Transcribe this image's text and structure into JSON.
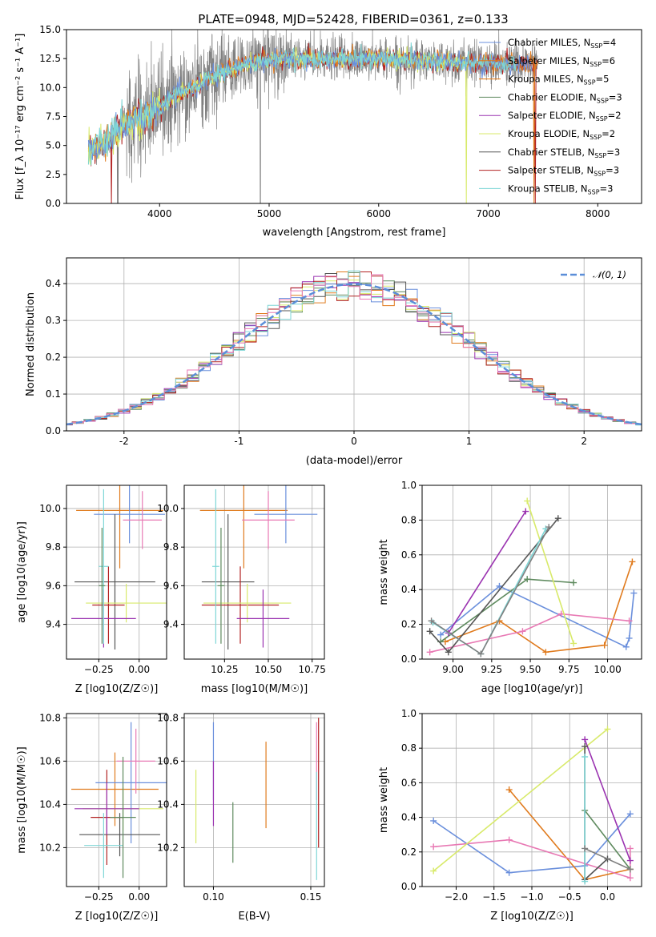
{
  "title": "PLATE=0948, MJD=52428, FIBERID=0361, z=0.133",
  "colors": {
    "Chabrier MILES": "#6a8fdc",
    "Salpeter MILES": "#e07b1e",
    "Kroupa MILES": "#e8780f",
    "Chabrier ELODIE": "#5e8a5e",
    "Salpeter ELODIE": "#9a32b0",
    "Kroupa ELODIE": "#d8ea6a",
    "Chabrier STELIB": "#555555",
    "Salpeter STELIB": "#b22222",
    "Kroupa STELIB": "#7ed6d6",
    "pink": "#e879b4",
    "data": "#808080",
    "normal": "#5b8ed8"
  },
  "chart_data": [
    {
      "id": "spectrum",
      "type": "line",
      "xlabel": "wavelength [Angstrom, rest frame]",
      "ylabel": "Flux [f_λ 10⁻¹⁷ erg cm⁻² s⁻¹ A⁻¹]",
      "xlim": [
        3150,
        8400
      ],
      "ylim": [
        0,
        15
      ],
      "xticks": [
        4000,
        5000,
        6000,
        7000,
        8000
      ],
      "yticks": [
        0.0,
        2.5,
        5.0,
        7.5,
        10.0,
        12.5,
        15.0
      ],
      "continuum": {
        "x": [
          3350,
          3500,
          3700,
          3900,
          4100,
          4300,
          4500,
          4800,
          5100,
          5500,
          6000,
          6500,
          7000,
          7400,
          7500,
          8000,
          8200
        ],
        "y": [
          4.6,
          5.2,
          7.0,
          7.5,
          9.0,
          10.0,
          11.0,
          12.0,
          12.5,
          12.5,
          12.5,
          12.3,
          12.1,
          12.0,
          12.0,
          12.1,
          12.2
        ]
      },
      "legend": [
        {
          "label": "Chabrier MILES, N",
          "sub": "SSP",
          "eq": "=4",
          "color": "#6a8fdc"
        },
        {
          "label": "Salpeter MILES, N",
          "sub": "SSP",
          "eq": "=6",
          "color": "#e07b1e"
        },
        {
          "label": "Kroupa MILES, N",
          "sub": "SSP",
          "eq": "=5",
          "color": "#e8780f"
        },
        {
          "label": "Chabrier ELODIE, N",
          "sub": "SSP",
          "eq": "=3",
          "color": "#5e8a5e"
        },
        {
          "label": "Salpeter ELODIE, N",
          "sub": "SSP",
          "eq": "=2",
          "color": "#9a32b0"
        },
        {
          "label": "Kroupa ELODIE, N",
          "sub": "SSP",
          "eq": "=2",
          "color": "#d8ea6a"
        },
        {
          "label": "Chabrier STELIB, N",
          "sub": "SSP",
          "eq": "=3",
          "color": "#555555"
        },
        {
          "label": "Salpeter STELIB, N",
          "sub": "SSP",
          "eq": "=3",
          "color": "#b22222"
        },
        {
          "label": "Kroupa STELIB, N",
          "sub": "SSP",
          "eq": "=3",
          "color": "#7ed6d6"
        }
      ]
    },
    {
      "id": "residuals",
      "type": "line",
      "xlabel": "(data-model)/error",
      "ylabel": "Normed distribution",
      "xlim": [
        -2.5,
        2.5
      ],
      "ylim": [
        0,
        0.47
      ],
      "xticks": [
        -2,
        -1,
        0,
        1,
        2
      ],
      "yticks": [
        0.0,
        0.1,
        0.2,
        0.3,
        0.4
      ],
      "legend": "N(0,1)",
      "grid": true
    },
    {
      "id": "age-vs-Z",
      "type": "scatter",
      "xlabel": "Z [log10(Z/Z☉)]",
      "ylabel": "age [log10(age/yr)]",
      "xlim": [
        -0.45,
        0.17
      ],
      "ylim": [
        9.22,
        10.12
      ],
      "xticks": [
        -0.25,
        0.0
      ],
      "xticklabels": [
        "−0.25",
        "0.00"
      ],
      "yticks": [
        9.4,
        9.6,
        9.8,
        10.0
      ],
      "points": [
        {
          "x": -0.12,
          "y": 9.99,
          "xerr": 0.27,
          "yerr": 0.3,
          "color": "#e07b1e"
        },
        {
          "x": -0.06,
          "y": 9.97,
          "xerr": 0.22,
          "yerr": 0.15,
          "color": "#6a8fdc"
        },
        {
          "x": 0.02,
          "y": 9.94,
          "xerr": 0.12,
          "yerr": 0.15,
          "color": "#e879b4"
        },
        {
          "x": -0.15,
          "y": 9.62,
          "xerr": 0.25,
          "yerr": 0.35,
          "color": "#555555"
        },
        {
          "x": -0.19,
          "y": 9.5,
          "xerr": 0.1,
          "yerr": 0.2,
          "color": "#b22222"
        },
        {
          "x": -0.08,
          "y": 9.51,
          "xerr": 0.25,
          "yerr": 0.1,
          "color": "#d8ea6a"
        },
        {
          "x": -0.22,
          "y": 9.43,
          "xerr": 0.2,
          "yerr": 0.15,
          "color": "#9a32b0"
        },
        {
          "x": -0.22,
          "y": 9.7,
          "xerr": 0.03,
          "yerr": 0.4,
          "color": "#7ed6d6"
        },
        {
          "x": -0.23,
          "y": 9.6,
          "xerr": 0.02,
          "yerr": 0.3,
          "color": "#5e8a5e"
        }
      ]
    },
    {
      "id": "age-vs-mass",
      "type": "scatter",
      "xlabel": "mass [log10(M/M☉)]",
      "ylabel": "",
      "xlim": [
        10.02,
        10.82
      ],
      "ylim": [
        9.22,
        10.12
      ],
      "xticks": [
        10.25,
        10.5,
        10.75
      ],
      "xticklabels": [
        "10.25",
        "10.50",
        "10.75"
      ],
      "yticks": [
        9.4,
        9.6,
        9.8,
        10.0
      ],
      "points": [
        {
          "x": 10.36,
          "y": 9.99,
          "xerr": 0.25,
          "yerr": 0.3,
          "color": "#e07b1e"
        },
        {
          "x": 10.6,
          "y": 9.97,
          "xerr": 0.18,
          "yerr": 0.15,
          "color": "#6a8fdc"
        },
        {
          "x": 10.5,
          "y": 9.94,
          "xerr": 0.15,
          "yerr": 0.15,
          "color": "#e879b4"
        },
        {
          "x": 10.27,
          "y": 9.62,
          "xerr": 0.15,
          "yerr": 0.35,
          "color": "#555555"
        },
        {
          "x": 10.34,
          "y": 9.5,
          "xerr": 0.22,
          "yerr": 0.2,
          "color": "#b22222"
        },
        {
          "x": 10.38,
          "y": 9.51,
          "xerr": 0.25,
          "yerr": 0.1,
          "color": "#d8ea6a"
        },
        {
          "x": 10.47,
          "y": 9.43,
          "xerr": 0.15,
          "yerr": 0.15,
          "color": "#9a32b0"
        },
        {
          "x": 10.2,
          "y": 9.7,
          "xerr": 0.02,
          "yerr": 0.4,
          "color": "#7ed6d6"
        },
        {
          "x": 10.23,
          "y": 9.6,
          "xerr": 0.02,
          "yerr": 0.3,
          "color": "#5e8a5e"
        }
      ]
    },
    {
      "id": "weight-vs-age",
      "type": "line",
      "xlabel": "age [log10(age/yr)]",
      "ylabel": "mass weight",
      "xlim": [
        8.8,
        10.22
      ],
      "ylim": [
        0,
        1.0
      ],
      "xticks": [
        9.0,
        9.25,
        9.5,
        9.75,
        10.0
      ],
      "xticklabels": [
        "9.00",
        "9.25",
        "9.50",
        "9.75",
        "10.00"
      ],
      "yticks": [
        0.0,
        0.2,
        0.4,
        0.6,
        0.8,
        1.0
      ],
      "series": [
        {
          "color": "#6a8fdc",
          "x": [
            8.92,
            9.3,
            10.12,
            10.14,
            10.17
          ],
          "y": [
            0.14,
            0.42,
            0.07,
            0.12,
            0.38
          ]
        },
        {
          "color": "#e07b1e",
          "x": [
            8.95,
            9.3,
            9.6,
            9.98,
            10.16
          ],
          "y": [
            0.1,
            0.22,
            0.04,
            0.08,
            0.56
          ]
        },
        {
          "color": "#e879b4",
          "x": [
            8.85,
            9.45,
            9.7,
            10.14
          ],
          "y": [
            0.04,
            0.16,
            0.26,
            0.22
          ]
        },
        {
          "color": "#5e8a5e",
          "x": [
            8.92,
            9.48,
            9.78
          ],
          "y": [
            0.1,
            0.46,
            0.44
          ]
        },
        {
          "color": "#9a32b0",
          "x": [
            8.97,
            9.47
          ],
          "y": [
            0.15,
            0.85
          ]
        },
        {
          "color": "#d8ea6a",
          "x": [
            9.48,
            9.78
          ],
          "y": [
            0.91,
            0.09
          ]
        },
        {
          "color": "#555555",
          "x": [
            8.85,
            8.97,
            9.68
          ],
          "y": [
            0.16,
            0.04,
            0.81
          ]
        },
        {
          "color": "#7ed6d6",
          "x": [
            8.87,
            9.18,
            9.6
          ],
          "y": [
            0.21,
            0.03,
            0.75
          ]
        },
        {
          "color": "#808080",
          "x": [
            8.86,
            9.18,
            9.62
          ],
          "y": [
            0.22,
            0.03,
            0.76
          ]
        }
      ]
    },
    {
      "id": "mass-vs-Z",
      "type": "scatter",
      "xlabel": "Z [log10(Z/Z☉)]",
      "ylabel": "mass [log10(M/M☉)]",
      "xlim": [
        -0.45,
        0.17
      ],
      "ylim": [
        10.02,
        10.82
      ],
      "xticks": [
        -0.25,
        0.0
      ],
      "xticklabels": [
        "−0.25",
        "0.00"
      ],
      "yticks": [
        10.2,
        10.4,
        10.6,
        10.8
      ],
      "points": [
        {
          "x": -0.15,
          "y": 10.47,
          "xerr": 0.27,
          "yerr": 0.17,
          "color": "#e07b1e"
        },
        {
          "x": -0.05,
          "y": 10.5,
          "xerr": 0.22,
          "yerr": 0.28,
          "color": "#6a8fdc"
        },
        {
          "x": -0.02,
          "y": 10.6,
          "xerr": 0.12,
          "yerr": 0.15,
          "color": "#e879b4"
        },
        {
          "x": -0.12,
          "y": 10.26,
          "xerr": 0.25,
          "yerr": 0.1,
          "color": "#555555"
        },
        {
          "x": -0.2,
          "y": 10.34,
          "xerr": 0.1,
          "yerr": 0.22,
          "color": "#b22222"
        },
        {
          "x": -0.1,
          "y": 10.38,
          "xerr": 0.25,
          "yerr": 0.1,
          "color": "#d8ea6a"
        },
        {
          "x": -0.2,
          "y": 10.38,
          "xerr": 0.2,
          "yerr": 0.12,
          "color": "#9a32b0"
        },
        {
          "x": -0.22,
          "y": 10.21,
          "xerr": 0.12,
          "yerr": 0.15,
          "color": "#7ed6d6"
        },
        {
          "x": -0.1,
          "y": 10.34,
          "xerr": 0.08,
          "yerr": 0.28,
          "color": "#5e8a5e"
        }
      ]
    },
    {
      "id": "mass-vs-ebv",
      "type": "scatter",
      "xlabel": "E(B-V)",
      "ylabel": "",
      "xlim": [
        0.085,
        0.157
      ],
      "ylim": [
        10.02,
        10.82
      ],
      "xticks": [
        0.1,
        0.15
      ],
      "xticklabels": [
        "0.10",
        "0.15"
      ],
      "yticks": [
        10.2,
        10.4,
        10.6,
        10.8
      ],
      "points": [
        {
          "x": 0.1,
          "y": 10.6,
          "xerr": 0,
          "yerr": 0.18,
          "color": "#6a8fdc"
        },
        {
          "x": 0.1,
          "y": 10.45,
          "xerr": 0,
          "yerr": 0.15,
          "color": "#9a32b0"
        },
        {
          "x": 0.091,
          "y": 10.39,
          "xerr": 0,
          "yerr": 0.17,
          "color": "#d8ea6a"
        },
        {
          "x": 0.11,
          "y": 10.27,
          "xerr": 0,
          "yerr": 0.14,
          "color": "#5e8a5e"
        },
        {
          "x": 0.127,
          "y": 10.49,
          "xerr": 0,
          "yerr": 0.2,
          "color": "#e07b1e"
        },
        {
          "x": 0.153,
          "y": 10.6,
          "xerr": 0,
          "yerr": 0.18,
          "color": "#e879b4"
        },
        {
          "x": 0.154,
          "y": 10.5,
          "xerr": 0,
          "yerr": 0.3,
          "color": "#b22222"
        },
        {
          "x": 0.153,
          "y": 10.3,
          "xerr": 0,
          "yerr": 0.25,
          "color": "#7ed6d6"
        }
      ]
    },
    {
      "id": "weight-vs-Z",
      "type": "line",
      "xlabel": "Z [log10(Z/Z☉)]",
      "ylabel": "mass weight",
      "xlim": [
        -2.45,
        0.45
      ],
      "ylim": [
        0,
        1.0
      ],
      "xticks": [
        -2.0,
        -1.5,
        -1.0,
        -0.5,
        0.0
      ],
      "xticklabels": [
        "−2.0",
        "−1.5",
        "−1.0",
        "−0.5",
        "0.0"
      ],
      "yticks": [
        0.0,
        0.2,
        0.4,
        0.6,
        0.8,
        1.0
      ],
      "series": [
        {
          "color": "#6a8fdc",
          "x": [
            -2.3,
            -1.3,
            -0.3,
            0.3
          ],
          "y": [
            0.38,
            0.08,
            0.12,
            0.42
          ]
        },
        {
          "color": "#e07b1e",
          "x": [
            -1.3,
            -0.3,
            0.3
          ],
          "y": [
            0.56,
            0.04,
            0.1
          ]
        },
        {
          "color": "#e879b4",
          "x": [
            -2.3,
            -1.3,
            0.3,
            0.3
          ],
          "y": [
            0.23,
            0.27,
            0.05,
            0.22
          ]
        },
        {
          "color": "#d8ea6a",
          "x": [
            -2.3,
            0.0
          ],
          "y": [
            0.09,
            0.91
          ]
        },
        {
          "color": "#9a32b0",
          "x": [
            -0.3,
            0.3
          ],
          "y": [
            0.85,
            0.15
          ]
        },
        {
          "color": "#5e8a5e",
          "x": [
            -0.3,
            0.3
          ],
          "y": [
            0.44,
            0.1
          ]
        },
        {
          "color": "#555555",
          "x": [
            -0.3,
            -0.3,
            0.0
          ],
          "y": [
            0.81,
            0.04,
            0.16
          ]
        },
        {
          "color": "#7ed6d6",
          "x": [
            -0.3,
            -0.3
          ],
          "y": [
            0.75,
            0.03
          ]
        },
        {
          "color": "#808080",
          "x": [
            -0.3,
            0.3
          ],
          "y": [
            0.22,
            0.1
          ]
        }
      ]
    }
  ]
}
